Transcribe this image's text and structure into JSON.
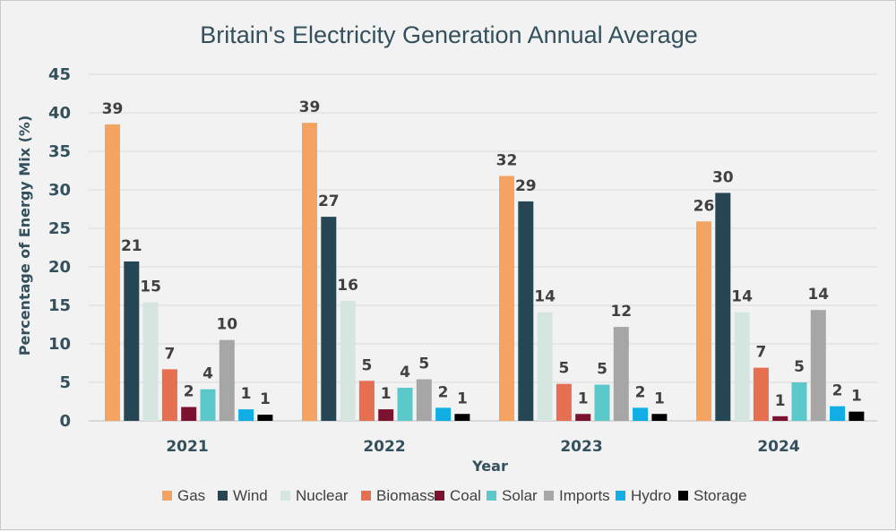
{
  "chart_data": {
    "type": "bar",
    "title": "Britain's Electricity Generation Annual Average",
    "xlabel": "Year",
    "ylabel": "Percentage of Energy Mix (%)",
    "ylim": [
      0,
      45
    ],
    "yticks": [
      0,
      5,
      10,
      15,
      20,
      25,
      30,
      35,
      40,
      45
    ],
    "grid": true,
    "legend_position": "bottom",
    "categories": [
      "2021",
      "2022",
      "2023",
      "2024"
    ],
    "series": [
      {
        "name": "Gas",
        "color": "#f4a460",
        "values": [
          38.5,
          38.7,
          31.8,
          25.9
        ],
        "labels": [
          "39",
          "39",
          "32",
          "26"
        ]
      },
      {
        "name": "Wind",
        "color": "#264653",
        "values": [
          20.7,
          26.5,
          28.5,
          29.6
        ],
        "labels": [
          "21",
          "27",
          "29",
          "30"
        ]
      },
      {
        "name": "Nuclear",
        "color": "#d5e6e1",
        "values": [
          15.4,
          15.6,
          14.1,
          14.1
        ],
        "labels": [
          "15",
          "16",
          "14",
          "14"
        ]
      },
      {
        "name": "Biomass",
        "color": "#e76f51",
        "values": [
          6.7,
          5.2,
          4.8,
          6.9
        ],
        "labels": [
          "7",
          "5",
          "5",
          "7"
        ]
      },
      {
        "name": "Coal",
        "color": "#7b1230",
        "values": [
          1.8,
          1.5,
          0.9,
          0.6
        ],
        "labels": [
          "2",
          "1",
          "1",
          "1"
        ]
      },
      {
        "name": "Solar",
        "color": "#5bc8c9",
        "values": [
          4.1,
          4.3,
          4.7,
          5.0
        ],
        "labels": [
          "4",
          "4",
          "5",
          "5"
        ]
      },
      {
        "name": "Imports",
        "color": "#a6a6a6",
        "values": [
          10.5,
          5.4,
          12.2,
          14.4
        ],
        "labels": [
          "10",
          "5",
          "12",
          "14"
        ]
      },
      {
        "name": "Hydro",
        "color": "#11aee6",
        "values": [
          1.5,
          1.7,
          1.7,
          1.9
        ],
        "labels": [
          "1",
          "2",
          "2",
          "2"
        ]
      },
      {
        "name": "Storage",
        "color": "#000000",
        "values": [
          0.8,
          0.9,
          0.9,
          1.2
        ],
        "labels": [
          "1",
          "1",
          "1",
          "1"
        ]
      }
    ]
  }
}
